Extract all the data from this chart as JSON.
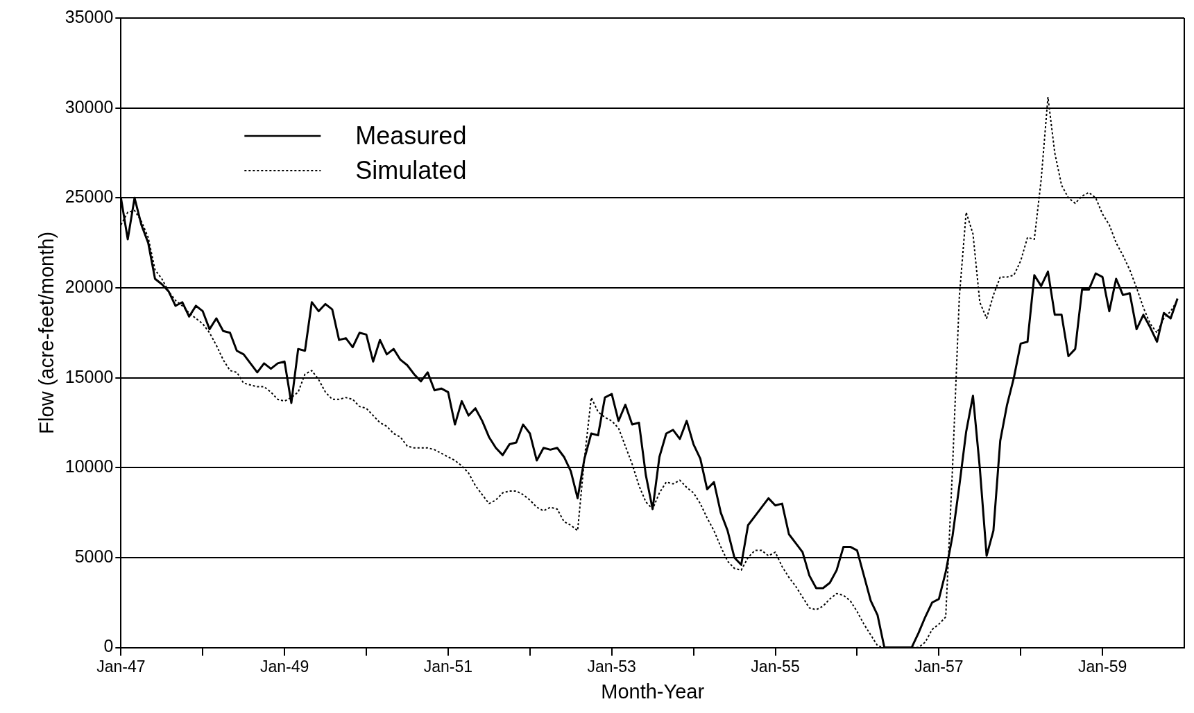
{
  "chart_data": {
    "type": "line",
    "xlabel": "Month-Year",
    "ylabel": "Flow (acre-feet/month)",
    "x": [
      "1947-01",
      "1947-02",
      "1947-03",
      "1947-04",
      "1947-05",
      "1947-06",
      "1947-07",
      "1947-08",
      "1947-09",
      "1947-10",
      "1947-11",
      "1947-12",
      "1948-01",
      "1948-02",
      "1948-03",
      "1948-04",
      "1948-05",
      "1948-06",
      "1948-07",
      "1948-08",
      "1948-09",
      "1948-10",
      "1948-11",
      "1948-12",
      "1949-01",
      "1949-02",
      "1949-03",
      "1949-04",
      "1949-05",
      "1949-06",
      "1949-07",
      "1949-08",
      "1949-09",
      "1949-10",
      "1949-11",
      "1949-12",
      "1950-01",
      "1950-02",
      "1950-03",
      "1950-04",
      "1950-05",
      "1950-06",
      "1950-07",
      "1950-08",
      "1950-09",
      "1950-10",
      "1950-11",
      "1950-12",
      "1951-01",
      "1951-02",
      "1951-03",
      "1951-04",
      "1951-05",
      "1951-06",
      "1951-07",
      "1951-08",
      "1951-09",
      "1951-10",
      "1951-11",
      "1951-12",
      "1952-01",
      "1952-02",
      "1952-03",
      "1952-04",
      "1952-05",
      "1952-06",
      "1952-07",
      "1952-08",
      "1952-09",
      "1952-10",
      "1952-11",
      "1952-12",
      "1953-01",
      "1953-02",
      "1953-03",
      "1953-04",
      "1953-05",
      "1953-06",
      "1953-07",
      "1953-08",
      "1953-09",
      "1953-10",
      "1953-11",
      "1953-12",
      "1954-01",
      "1954-02",
      "1954-03",
      "1954-04",
      "1954-05",
      "1954-06",
      "1954-07",
      "1954-08",
      "1954-09",
      "1954-10",
      "1954-11",
      "1954-12",
      "1955-01",
      "1955-02",
      "1955-03",
      "1955-04",
      "1955-05",
      "1955-06",
      "1955-07",
      "1955-08",
      "1955-09",
      "1955-10",
      "1955-11",
      "1955-12",
      "1956-01",
      "1956-02",
      "1956-03",
      "1956-04",
      "1956-05",
      "1956-06",
      "1956-07",
      "1956-08",
      "1956-09",
      "1956-10",
      "1956-11",
      "1956-12",
      "1957-01",
      "1957-02",
      "1957-03",
      "1957-04",
      "1957-05",
      "1957-06",
      "1957-07",
      "1957-08",
      "1957-09",
      "1957-10",
      "1957-11",
      "1957-12",
      "1958-01",
      "1958-02",
      "1958-03",
      "1958-04",
      "1958-05",
      "1958-06",
      "1958-07",
      "1958-08",
      "1958-09",
      "1958-10",
      "1958-11",
      "1958-12",
      "1959-01",
      "1959-02",
      "1959-03",
      "1959-04",
      "1959-05",
      "1959-06",
      "1959-07",
      "1959-08",
      "1959-09",
      "1959-10",
      "1959-11",
      "1959-12"
    ],
    "series": [
      {
        "name": "Measured",
        "color": "#000000",
        "line_style": "solid",
        "values": [
          25000,
          22700,
          25000,
          23500,
          22500,
          20500,
          20200,
          19800,
          19000,
          19200,
          18400,
          19000,
          18700,
          17700,
          18300,
          17600,
          17500,
          16500,
          16300,
          15800,
          15300,
          15800,
          15500,
          15800,
          15900,
          13600,
          16600,
          16500,
          19200,
          18700,
          19100,
          18800,
          17100,
          17200,
          16700,
          17500,
          17400,
          15900,
          17100,
          16300,
          16600,
          16000,
          15700,
          15200,
          14800,
          15300,
          14300,
          14400,
          14200,
          12400,
          13700,
          12900,
          13300,
          12600,
          11700,
          11100,
          10700,
          11300,
          11400,
          12400,
          11900,
          10400,
          11100,
          11000,
          11100,
          10600,
          9800,
          8300,
          10500,
          11900,
          11800,
          13900,
          14100,
          12600,
          13500,
          12400,
          12500,
          9600,
          7700,
          10600,
          11900,
          12100,
          11600,
          12600,
          11300,
          10500,
          8800,
          9200,
          7500,
          6500,
          5000,
          4600,
          6800,
          7300,
          7800,
          8300,
          7900,
          8000,
          6300,
          5800,
          5300,
          4000,
          3300,
          3300,
          3600,
          4300,
          5600,
          5600,
          5400,
          4000,
          2600,
          1800,
          0,
          0,
          0,
          0,
          0,
          800,
          1700,
          2500,
          2700,
          4200,
          6200,
          9000,
          12000,
          14000,
          10000,
          5100,
          6500,
          11500,
          13500,
          15000,
          16900,
          17000,
          20700,
          20100,
          20900,
          18500,
          18500,
          16200,
          16600,
          19900,
          19900,
          20800,
          20600,
          18700,
          20500,
          19600,
          19700,
          17700,
          18500,
          17800,
          17000,
          18600,
          18300,
          19400
        ]
      },
      {
        "name": "Simulated",
        "color": "#000000",
        "line_style": "dotted",
        "values": [
          23500,
          24200,
          24300,
          23700,
          22800,
          21000,
          20500,
          19800,
          19300,
          19000,
          18600,
          18300,
          18000,
          17500,
          16800,
          16000,
          15400,
          15300,
          14700,
          14600,
          14500,
          14500,
          14200,
          13800,
          13700,
          13900,
          14200,
          15200,
          15400,
          14900,
          14200,
          13800,
          13800,
          13900,
          13800,
          13400,
          13300,
          12900,
          12500,
          12300,
          11900,
          11700,
          11200,
          11100,
          11100,
          11100,
          11000,
          10800,
          10600,
          10400,
          10100,
          9700,
          9000,
          8500,
          8000,
          8200,
          8600,
          8700,
          8700,
          8500,
          8200,
          7800,
          7600,
          7800,
          7700,
          7000,
          6800,
          6500,
          10500,
          13900,
          13100,
          12800,
          12600,
          12200,
          11200,
          10200,
          9000,
          8100,
          7700,
          8600,
          9200,
          9100,
          9300,
          8900,
          8600,
          8000,
          7200,
          6500,
          5600,
          4800,
          4400,
          4300,
          5000,
          5400,
          5400,
          5100,
          5300,
          4500,
          3900,
          3400,
          2800,
          2200,
          2100,
          2300,
          2700,
          3000,
          2900,
          2600,
          2000,
          1300,
          700,
          100,
          0,
          0,
          0,
          0,
          0,
          0,
          300,
          1000,
          1300,
          1700,
          10000,
          19500,
          24200,
          23000,
          19200,
          18300,
          19600,
          20600,
          20600,
          20700,
          21500,
          22800,
          22700,
          26000,
          30600,
          27500,
          25700,
          25000,
          24700,
          25100,
          25300,
          25000,
          24100,
          23500,
          22500,
          21800,
          21000,
          20000,
          18900,
          18000,
          17500,
          18300,
          18700,
          19300
        ]
      }
    ],
    "xlim": [
      "1947-01",
      "1960-01"
    ],
    "xticks": [
      {
        "value": "1947-01",
        "label": "Jan-47"
      },
      {
        "value": "1948-01",
        "label": null
      },
      {
        "value": "1949-01",
        "label": "Jan-49"
      },
      {
        "value": "1950-01",
        "label": null
      },
      {
        "value": "1951-01",
        "label": "Jan-51"
      },
      {
        "value": "1952-01",
        "label": null
      },
      {
        "value": "1953-01",
        "label": "Jan-53"
      },
      {
        "value": "1954-01",
        "label": null
      },
      {
        "value": "1955-01",
        "label": "Jan-55"
      },
      {
        "value": "1956-01",
        "label": null
      },
      {
        "value": "1957-01",
        "label": "Jan-57"
      },
      {
        "value": "1958-01",
        "label": null
      },
      {
        "value": "1959-01",
        "label": "Jan-59"
      }
    ],
    "ylim": [
      0,
      35000
    ],
    "yticks": [
      0,
      5000,
      10000,
      15000,
      20000,
      25000,
      30000,
      35000
    ],
    "grid": "y",
    "legend": "top left",
    "marker": "none"
  }
}
